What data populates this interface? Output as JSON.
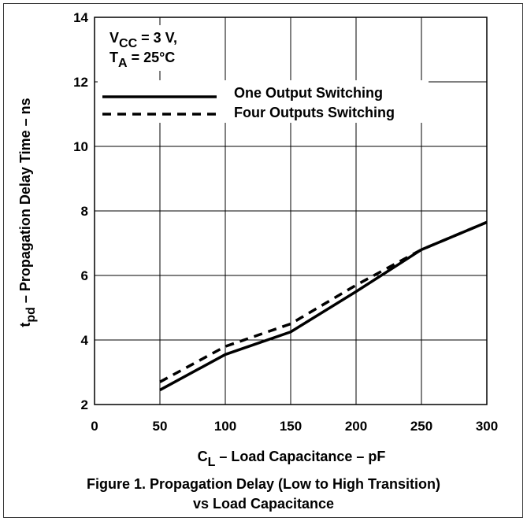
{
  "chart_data": {
    "type": "line",
    "x_ticks": [
      0,
      50,
      100,
      150,
      200,
      250,
      300
    ],
    "y_ticks": [
      2,
      4,
      6,
      8,
      10,
      12,
      14
    ],
    "xlim": [
      0,
      300
    ],
    "ylim": [
      2,
      14
    ],
    "grid": true,
    "ylabel": {
      "main": "t",
      "sub": "pd",
      "rest": " – Propagation Delay Time – ns"
    },
    "xlabel": {
      "main": "C",
      "sub": "L",
      "rest": " – Load Capacitance – pF"
    },
    "conditions": [
      {
        "main": "V",
        "sub": "CC",
        "rest": " = 3 V,"
      },
      {
        "main": "T",
        "sub": "A",
        "rest": " = 25°C"
      }
    ],
    "series": [
      {
        "name": "One Output Switching",
        "style": "solid",
        "x": [
          50,
          100,
          150,
          200,
          250,
          300
        ],
        "y": [
          2.45,
          3.55,
          4.25,
          5.5,
          6.8,
          7.65
        ]
      },
      {
        "name": "Four Outputs Switching",
        "style": "dashed",
        "x": [
          50,
          100,
          150,
          200,
          250,
          300
        ],
        "y": [
          2.7,
          3.8,
          4.5,
          5.7,
          6.8,
          7.65
        ]
      }
    ]
  },
  "caption": {
    "line1": "Figure 1. Propagation Delay (Low to High Transition)",
    "line2": "vs Load Capacitance"
  }
}
